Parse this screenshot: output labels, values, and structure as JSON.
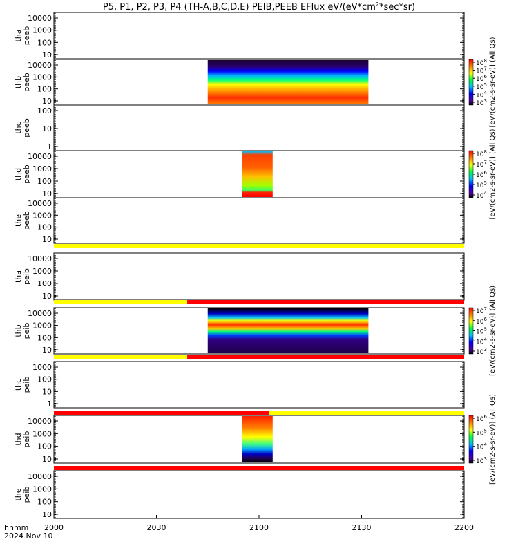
{
  "title": "P5, P1, P2, P3, P4 (TH-A,B,C,D,E) PEIB,PEEB EFlux eV/(eV*cm",
  "title_sup": "2",
  "title_end": "*sec*sr)",
  "time_axis": {
    "row_label": "hhmm",
    "date_label": "2024 Nov 10",
    "ticks": [
      "2000",
      "2030",
      "2100",
      "2130",
      "2200"
    ]
  },
  "panels": [
    {
      "probe": "tha",
      "product": "peeb",
      "yticks": [
        "10000",
        "1000",
        "100",
        "10"
      ]
    },
    {
      "probe": "thb",
      "product": "peeb",
      "yticks": [
        "10000",
        "1000",
        "100",
        "10"
      ]
    },
    {
      "probe": "thc",
      "product": "peeb",
      "yticks": [
        "100",
        "10",
        "1"
      ]
    },
    {
      "probe": "thd",
      "product": "peeb",
      "yticks": [
        "10000",
        "1000",
        "100",
        "10"
      ]
    },
    {
      "probe": "the",
      "product": "peeb",
      "yticks": [
        "10000",
        "1000",
        "100",
        "10"
      ]
    },
    {
      "probe": "tha",
      "product": "peib",
      "yticks": [
        "10000",
        "1000",
        "100",
        "10"
      ]
    },
    {
      "probe": "thb",
      "product": "peib",
      "yticks": [
        "10000",
        "1000",
        "100",
        "10"
      ]
    },
    {
      "probe": "thc",
      "product": "peib",
      "yticks": [
        "1000",
        "100",
        "10",
        "1"
      ]
    },
    {
      "probe": "thd",
      "product": "peib",
      "yticks": [
        "10000",
        "1000",
        "100",
        "10"
      ]
    },
    {
      "probe": "the",
      "product": "peib",
      "yticks": [
        "10000",
        "1000",
        "100",
        "10"
      ]
    }
  ],
  "colorbars": [
    {
      "label": "[eV/(cm2-s-sr-eV)] (All Qs)",
      "ticks": [
        "10^8",
        "10^7",
        "10^6",
        "10^5",
        "10^4",
        "10^3"
      ]
    },
    {
      "label": "[eV/(cm2-s-sr-eV)] (All Qs)",
      "ticks": [
        "10^8",
        "10^7",
        "10^6",
        "10^5",
        "10^4"
      ]
    },
    {
      "label": "[eV/(cm2-s-sr-eV)] (All Qs)",
      "ticks": [
        "10^7",
        "10^6",
        "10^5",
        "10^4",
        "10^3"
      ]
    },
    {
      "label": "[eV/(cm2-s-sr-eV)] (All Qs)",
      "ticks": [
        "10^6",
        "10^5",
        "10^4",
        "10^3"
      ]
    }
  ],
  "chart_data": {
    "type": "heatmap",
    "x_range": [
      "2000",
      "2200"
    ],
    "y_scale": "log",
    "spectrograms": [
      {
        "panel": "thb peeb",
        "x_start": "2045",
        "x_end": "2132"
      },
      {
        "panel": "thd peeb",
        "x_start": "2055",
        "x_end": "2104"
      },
      {
        "panel": "thb peib",
        "x_start": "2045",
        "x_end": "2132"
      },
      {
        "panel": "thd peib",
        "x_start": "2055",
        "x_end": "2104"
      }
    ],
    "flag_bars": [
      {
        "after_panel": "the peeb",
        "segments": [
          {
            "x_start": "2000",
            "x_end": "2200",
            "color": "#ffff00"
          }
        ]
      },
      {
        "after_panel": "tha peib",
        "segments": [
          {
            "x_start": "2000",
            "x_end": "2039",
            "color": "#ffff00"
          },
          {
            "x_start": "2039",
            "x_end": "2200",
            "color": "#ff0000"
          }
        ]
      },
      {
        "after_panel": "thb peib",
        "segments": [
          {
            "x_start": "2000",
            "x_end": "2039",
            "color": "#ffff00"
          },
          {
            "x_start": "2039",
            "x_end": "2200",
            "color": "#ff0000"
          }
        ]
      },
      {
        "after_panel": "thc peib",
        "segments": [
          {
            "x_start": "2000",
            "x_end": "2103",
            "color": "#ff0000"
          },
          {
            "x_start": "2103",
            "x_end": "2200",
            "color": "#ffff00"
          }
        ]
      },
      {
        "after_panel": "thd peib",
        "segments": [
          {
            "x_start": "2000",
            "x_end": "2200",
            "color": "#ff0000"
          }
        ]
      }
    ]
  }
}
